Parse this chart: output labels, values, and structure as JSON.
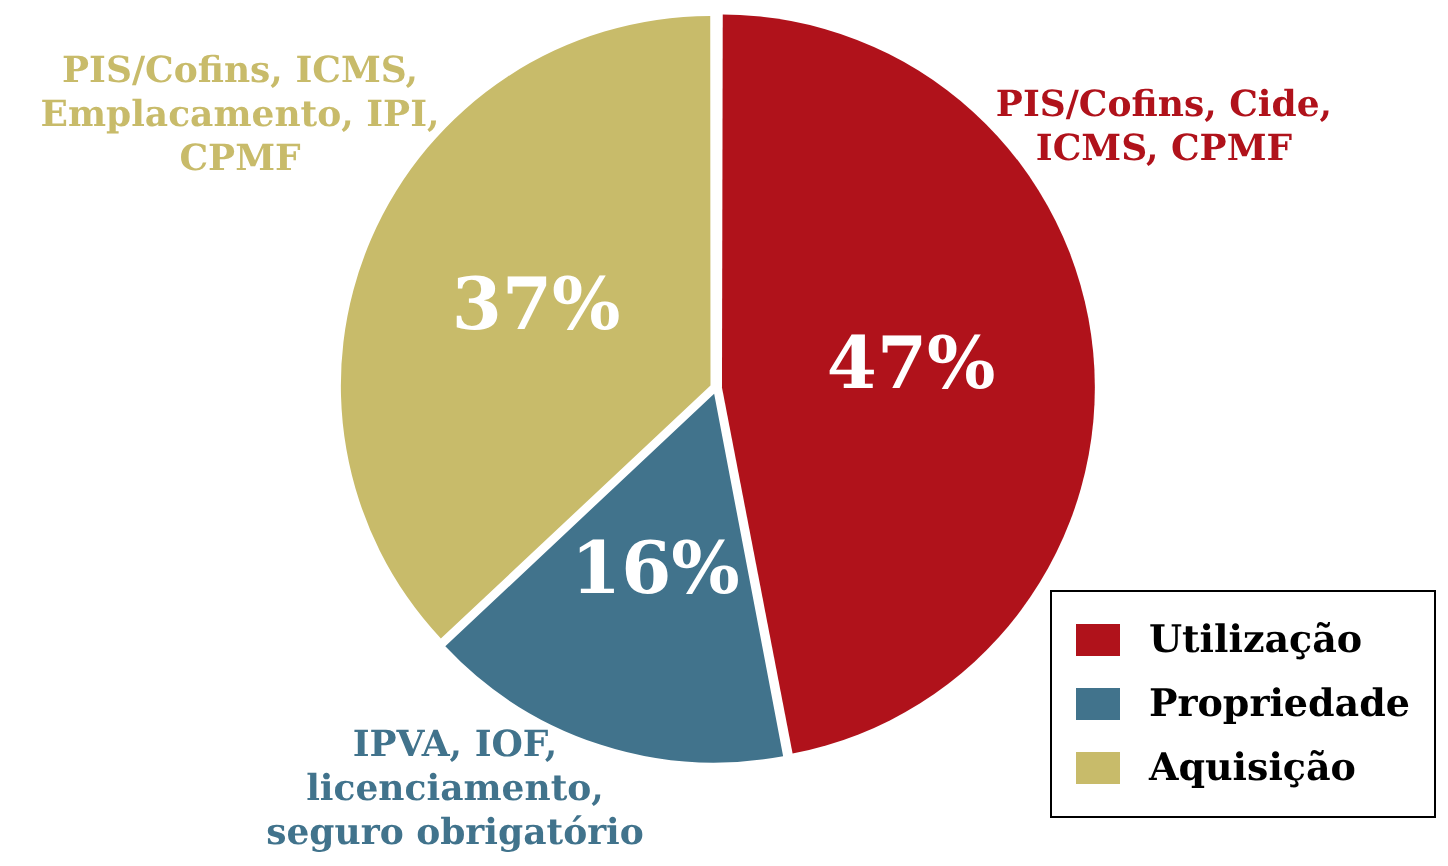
{
  "chart_data": {
    "type": "pie",
    "categories": [
      "Utilização",
      "Propriedade",
      "Aquisição"
    ],
    "values": [
      47,
      16,
      37
    ],
    "value_labels": [
      "47%",
      "16%",
      "37%"
    ],
    "colors": [
      "#b0121b",
      "#41738c",
      "#c8bb6a"
    ],
    "legend": "bottom right",
    "annotations": [
      "PIS/Cofins, Cide, ICMS, CPMF",
      "IPVA, IOF, licenciamento, seguro obrigatório",
      "PIS/Cofins, ICMS, Emplacamento, IPI, CPMF"
    ]
  }
}
